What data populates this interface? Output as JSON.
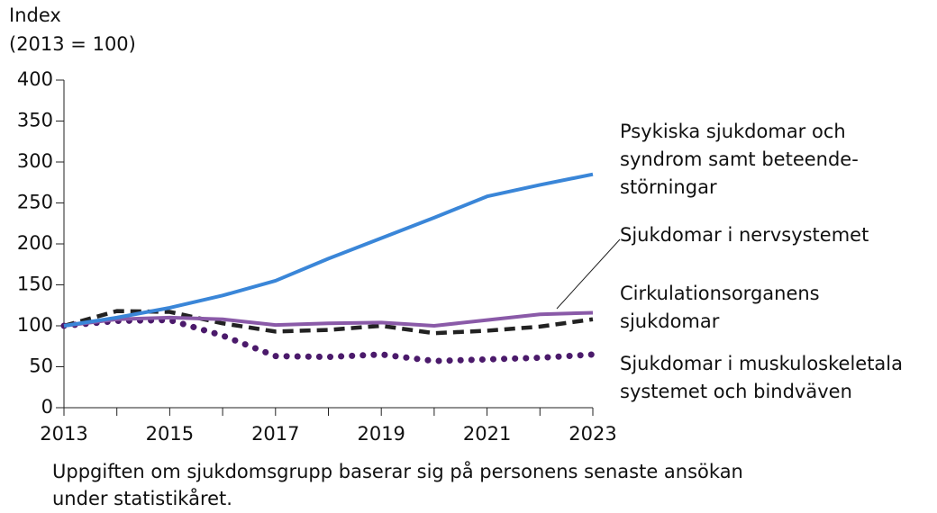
{
  "chart_data": {
    "type": "line",
    "ylabel": "Index\n(2013 = 100)",
    "x": [
      2013,
      2014,
      2015,
      2016,
      2017,
      2018,
      2019,
      2020,
      2021,
      2022,
      2023
    ],
    "xlim": [
      2013,
      2023
    ],
    "xticks": [
      2013,
      2015,
      2017,
      2019,
      2021,
      2023
    ],
    "ylim": [
      0,
      400
    ],
    "yticks": [
      0,
      50,
      100,
      150,
      200,
      250,
      300,
      350,
      400
    ],
    "series": [
      {
        "name": "Psykiska sjukdomar och\nsyndrom samt beteende-\nstörningar",
        "color": "#3a86d8",
        "style": "solid",
        "values": [
          100,
          110,
          122,
          137,
          155,
          182,
          207,
          232,
          258,
          272,
          285
        ]
      },
      {
        "name": "Sjukdomar i nervsystemet",
        "color": "#8a5aa8",
        "style": "solid",
        "values": [
          100,
          108,
          110,
          108,
          101,
          103,
          104,
          100,
          107,
          114,
          116
        ]
      },
      {
        "name": "Cirkulationsorganens\nsjukdomar",
        "color": "#222222",
        "style": "dashed",
        "values": [
          100,
          118,
          117,
          103,
          93,
          95,
          100,
          91,
          94,
          99,
          108
        ]
      },
      {
        "name": "Sjukdomar i muskuloskeletala\nsystemet och bindväven",
        "color": "#4b1a6b",
        "style": "dotted",
        "values": [
          100,
          106,
          107,
          88,
          63,
          62,
          65,
          57,
          59,
          61,
          65
        ]
      }
    ],
    "note": "Uppgiften om sjukdomsgrupp baserar sig på personens senaste ansökan\nunder statistikåret."
  }
}
